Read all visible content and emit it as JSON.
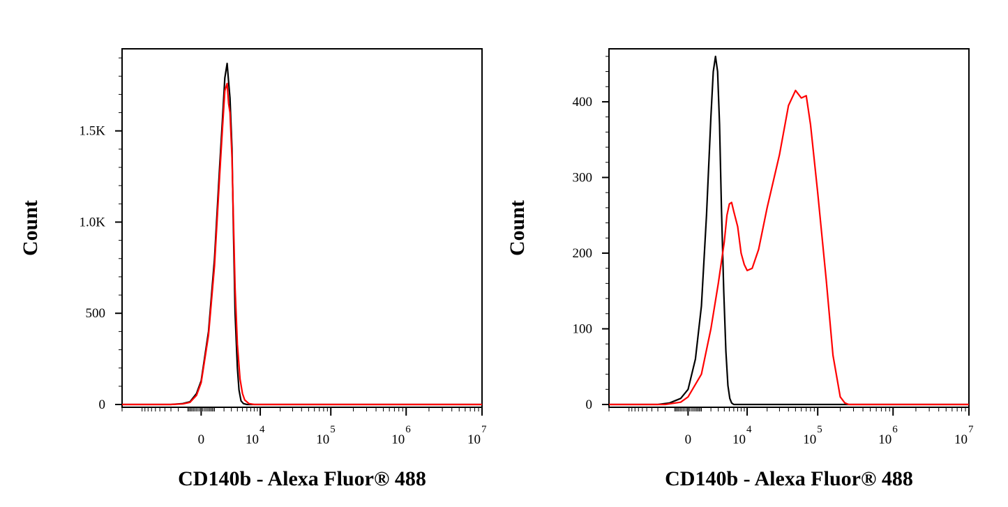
{
  "colors": {
    "control": "#000000",
    "stained": "#ff0000",
    "frame": "#000000",
    "background": "#ffffff"
  },
  "chart_data": [
    {
      "type": "line",
      "xlabel": "CD140b - Alexa Fluor® 488",
      "ylabel": "Count",
      "xscale": "biexponential",
      "ylim": [
        0,
        1950
      ],
      "grid": false,
      "legend": "none",
      "xticks": [
        {
          "base": "0",
          "exp": "",
          "value": 0
        },
        {
          "base": "10",
          "exp": "4",
          "value": 10000
        },
        {
          "base": "10",
          "exp": "5",
          "value": 100000
        },
        {
          "base": "10",
          "exp": "6",
          "value": 1000000
        },
        {
          "base": "10",
          "exp": "7",
          "value": 10000000
        }
      ],
      "yticks": [
        {
          "label": "0",
          "value": 0
        },
        {
          "label": "500",
          "value": 500
        },
        {
          "label": "1.0K",
          "value": 1000
        },
        {
          "label": "1.5K",
          "value": 1500
        }
      ],
      "series": [
        {
          "color": "#000000",
          "x": [
            -20000,
            -3000,
            -1500,
            -800,
            -300,
            0,
            500,
            1000,
            1500,
            1800,
            2100,
            2400,
            2600,
            2800,
            3100,
            3300,
            3600,
            4000,
            4300,
            4700,
            5200,
            6000,
            8000,
            10000000
          ],
          "y": [
            0,
            0,
            5,
            15,
            60,
            130,
            400,
            800,
            1300,
            1550,
            1790,
            1870,
            1770,
            1680,
            1400,
            1000,
            500,
            200,
            80,
            20,
            5,
            0,
            0,
            0
          ]
        },
        {
          "color": "#ff0000",
          "x": [
            -20000,
            -3000,
            -1500,
            -800,
            -300,
            0,
            500,
            1000,
            1500,
            1800,
            2100,
            2400,
            2600,
            2800,
            3100,
            3300,
            3600,
            4000,
            4500,
            5000,
            5500,
            6500,
            8000,
            10000000
          ],
          "y": [
            0,
            0,
            3,
            12,
            50,
            120,
            380,
            760,
            1250,
            1500,
            1720,
            1760,
            1650,
            1600,
            1350,
            1050,
            640,
            330,
            140,
            60,
            25,
            5,
            0,
            0
          ]
        }
      ]
    },
    {
      "type": "line",
      "xlabel": "CD140b - Alexa Fluor® 488",
      "ylabel": "Count",
      "xscale": "biexponential",
      "ylim": [
        0,
        470
      ],
      "grid": false,
      "legend": "none",
      "xticks": [
        {
          "base": "0",
          "exp": "",
          "value": 0
        },
        {
          "base": "10",
          "exp": "4",
          "value": 10000
        },
        {
          "base": "10",
          "exp": "5",
          "value": 100000
        },
        {
          "base": "10",
          "exp": "6",
          "value": 1000000
        },
        {
          "base": "10",
          "exp": "7",
          "value": 10000000
        }
      ],
      "yticks": [
        {
          "label": "0",
          "value": 0
        },
        {
          "label": "100",
          "value": 100
        },
        {
          "label": "200",
          "value": 200
        },
        {
          "label": "300",
          "value": 300
        },
        {
          "label": "400",
          "value": 400
        }
      ],
      "series": [
        {
          "color": "#000000",
          "x": [
            -20000,
            -3000,
            -1500,
            -500,
            0,
            500,
            1000,
            1500,
            2000,
            2300,
            2600,
            2900,
            3200,
            3500,
            3900,
            4300,
            4700,
            5100,
            5500,
            6000,
            7000,
            10000000
          ],
          "y": [
            0,
            0,
            2,
            8,
            20,
            60,
            130,
            250,
            380,
            440,
            460,
            440,
            370,
            260,
            150,
            70,
            25,
            8,
            2,
            0,
            0,
            0
          ]
        },
        {
          "color": "#ff0000",
          "x": [
            -20000,
            -2000,
            -500,
            0,
            1000,
            2000,
            3000,
            4000,
            4500,
            5000,
            5500,
            6000,
            7000,
            8000,
            9000,
            10000,
            12000,
            15000,
            20000,
            30000,
            40000,
            50000,
            60000,
            70000,
            80000,
            100000,
            130000,
            160000,
            200000,
            230000,
            260000,
            300000,
            10000000
          ],
          "y": [
            0,
            0,
            3,
            10,
            40,
            100,
            160,
            215,
            250,
            265,
            267,
            255,
            235,
            200,
            185,
            177,
            180,
            205,
            260,
            330,
            395,
            415,
            405,
            408,
            370,
            280,
            165,
            65,
            10,
            2,
            0,
            0,
            0
          ]
        }
      ]
    }
  ]
}
